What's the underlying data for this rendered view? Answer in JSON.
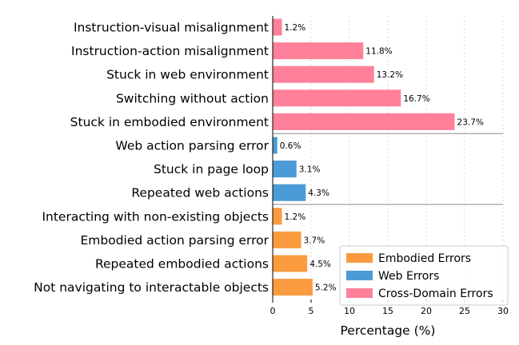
{
  "chart_data": {
    "type": "bar",
    "orientation": "horizontal",
    "xlabel": "Percentage (%)",
    "xlim": [
      0,
      30
    ],
    "xticks": [
      "0",
      "5",
      "10",
      "15",
      "20",
      "25",
      "30"
    ],
    "grid": "vertical dashed",
    "legend_position": "bottom-right",
    "categories": [
      "Instruction-visual misalignment",
      "Instruction-action misalignment",
      "Stuck in web environment",
      "Switching without action",
      "Stuck in embodied environment",
      "Web action parsing error",
      "Stuck in page loop",
      "Repeated web actions",
      "Interacting with non-existing objects",
      "Embodied action parsing error",
      "Repeated embodied actions",
      "Not navigating to interactable objects"
    ],
    "values": [
      1.2,
      11.8,
      13.2,
      16.7,
      23.7,
      0.6,
      3.1,
      4.3,
      1.2,
      3.7,
      4.5,
      5.2
    ],
    "value_labels": [
      "1.2%",
      "11.8%",
      "13.2%",
      "16.7%",
      "23.7%",
      "0.6%",
      "3.1%",
      "4.3%",
      "1.2%",
      "3.7%",
      "4.5%",
      "5.2%"
    ],
    "groups": [
      "cross",
      "cross",
      "cross",
      "cross",
      "cross",
      "web",
      "web",
      "web",
      "embodied",
      "embodied",
      "embodied",
      "embodied"
    ],
    "series": [
      {
        "key": "embodied",
        "name": "Embodied Errors",
        "color": "#F99B3E"
      },
      {
        "key": "web",
        "name": "Web Errors",
        "color": "#4A9BD6"
      },
      {
        "key": "cross",
        "name": "Cross-Domain Errors",
        "color": "#FF8099"
      }
    ]
  }
}
